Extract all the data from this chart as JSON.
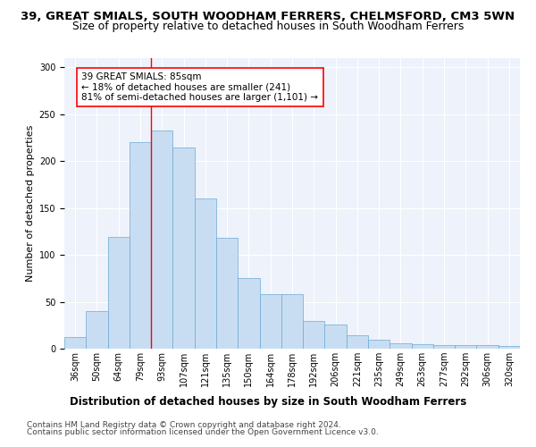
{
  "title": "39, GREAT SMIALS, SOUTH WOODHAM FERRERS, CHELMSFORD, CM3 5WN",
  "subtitle": "Size of property relative to detached houses in South Woodham Ferrers",
  "xlabel": "Distribution of detached houses by size in South Woodham Ferrers",
  "ylabel": "Number of detached properties",
  "categories": [
    "36sqm",
    "50sqm",
    "64sqm",
    "79sqm",
    "93sqm",
    "107sqm",
    "121sqm",
    "135sqm",
    "150sqm",
    "164sqm",
    "178sqm",
    "192sqm",
    "206sqm",
    "221sqm",
    "235sqm",
    "249sqm",
    "263sqm",
    "277sqm",
    "292sqm",
    "306sqm",
    "320sqm"
  ],
  "bar_heights": [
    12,
    40,
    119,
    220,
    233,
    215,
    160,
    118,
    75,
    58,
    58,
    30,
    26,
    14,
    10,
    6,
    5,
    4,
    4,
    4,
    3
  ],
  "bar_color": "#c9ddf2",
  "bar_edge_color": "#6aaad4",
  "property_label": "39 GREAT SMIALS: 85sqm",
  "annotation_line1": "← 18% of detached houses are smaller (241)",
  "annotation_line2": "81% of semi-detached houses are larger (1,101) →",
  "footer1": "Contains HM Land Registry data © Crown copyright and database right 2024.",
  "footer2": "Contains public sector information licensed under the Open Government Licence v3.0.",
  "ylim": [
    0,
    310
  ],
  "background_color": "#eef2fb",
  "title_fontsize": 9.5,
  "subtitle_fontsize": 8.8,
  "ylabel_fontsize": 8,
  "xlabel_fontsize": 8.5,
  "tick_fontsize": 7,
  "annotation_fontsize": 7.5,
  "footer_fontsize": 6.5
}
